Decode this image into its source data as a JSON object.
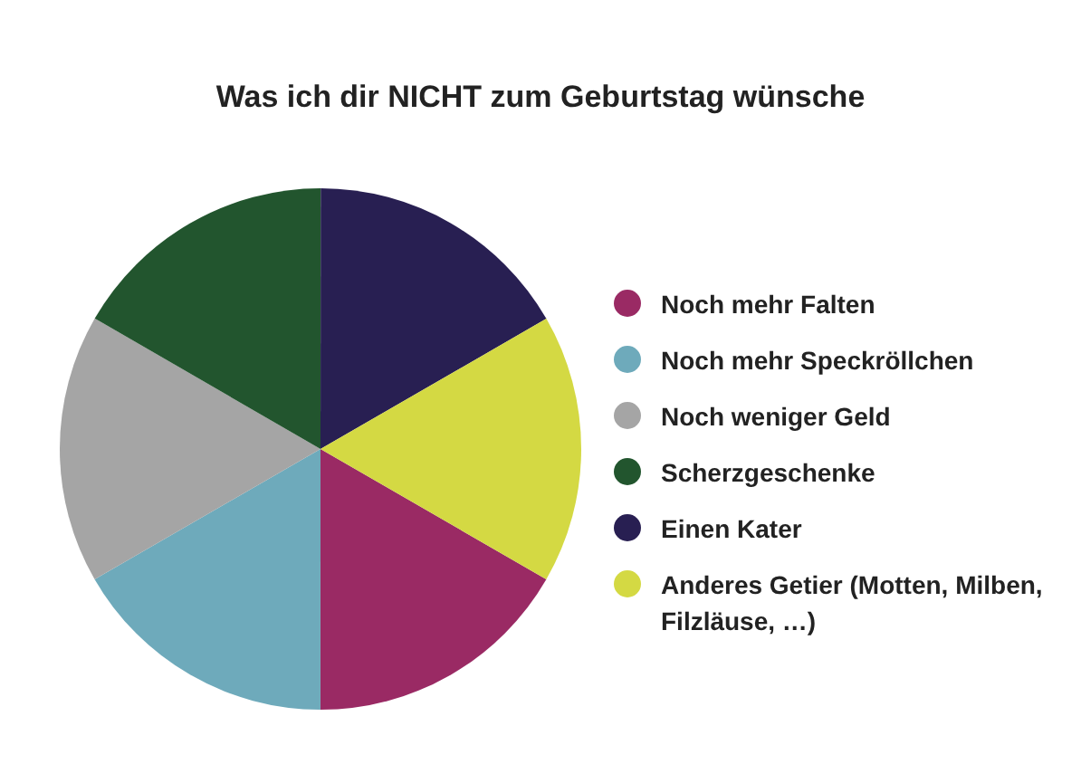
{
  "chart_data": {
    "type": "pie",
    "title": "Was ich dir NICHT zum Geburtstag wünsche",
    "categories": [
      "Noch mehr Falten",
      "Noch mehr Speckröllchen",
      "Noch weniger Geld",
      "Scherzgeschenke",
      "Einen Kater",
      "Anderes Getier (Motten, Milben, Filzläuse, …)"
    ],
    "values": [
      16.67,
      16.67,
      16.67,
      16.67,
      16.66,
      16.66
    ],
    "colors": [
      "#9a2a64",
      "#6eaabb",
      "#a5a5a5",
      "#22552e",
      "#281f52",
      "#d4d943"
    ],
    "legend": "right"
  }
}
